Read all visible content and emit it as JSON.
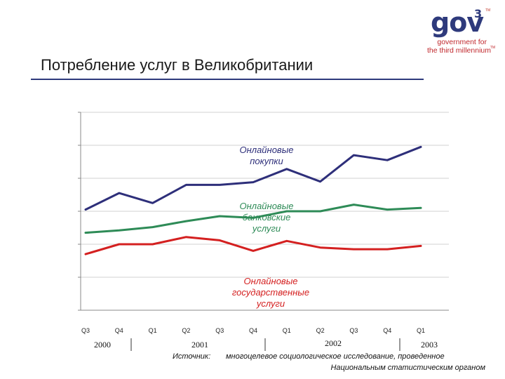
{
  "logo": {
    "main": "gov",
    "sup": "3",
    "tm": "TM",
    "line1": "government for",
    "line2": "the third millennium"
  },
  "page": {
    "title": "Потребление услуг в Великобритании"
  },
  "source": {
    "label": "Источник:",
    "line1": "многоцелевое социологическое исследование, проведенное",
    "line2": "Национальным статистическим органом"
  },
  "chart_data": {
    "type": "line",
    "x": [
      "Q3",
      "Q4",
      "Q1",
      "Q2",
      "Q3",
      "Q4",
      "Q1",
      "Q2",
      "Q3",
      "Q4",
      "Q1"
    ],
    "x_groups": [
      {
        "label": "2000",
        "start": 0
      },
      {
        "label": "2001",
        "start": 2
      },
      {
        "label": "2002",
        "start": 6
      },
      {
        "label": "2003",
        "start": 10
      }
    ],
    "ylim": [
      0,
      6
    ],
    "grid": true,
    "series": [
      {
        "name": "Онлайновые покупки",
        "name_lines": [
          "Онлайновые",
          "покупки"
        ],
        "color": "#2e2f7a",
        "values": [
          3.05,
          3.55,
          3.25,
          3.8,
          3.8,
          3.88,
          4.28,
          3.9,
          4.7,
          4.55,
          4.95
        ]
      },
      {
        "name": "Онлайновые банковские услуги",
        "name_lines": [
          "Онлайновые",
          "банковские",
          "услуги"
        ],
        "color": "#2e8b57",
        "values": [
          2.35,
          2.42,
          2.52,
          2.7,
          2.85,
          2.8,
          3.0,
          3.0,
          3.2,
          3.05,
          3.1
        ]
      },
      {
        "name": "Онлайновые государственные услуги",
        "name_lines": [
          "Онлайновые",
          "государственные",
          "услуги"
        ],
        "color": "#d42020",
        "values": [
          1.7,
          2.0,
          2.0,
          2.22,
          2.12,
          1.8,
          2.1,
          1.9,
          1.85,
          1.85,
          1.95
        ]
      }
    ]
  }
}
